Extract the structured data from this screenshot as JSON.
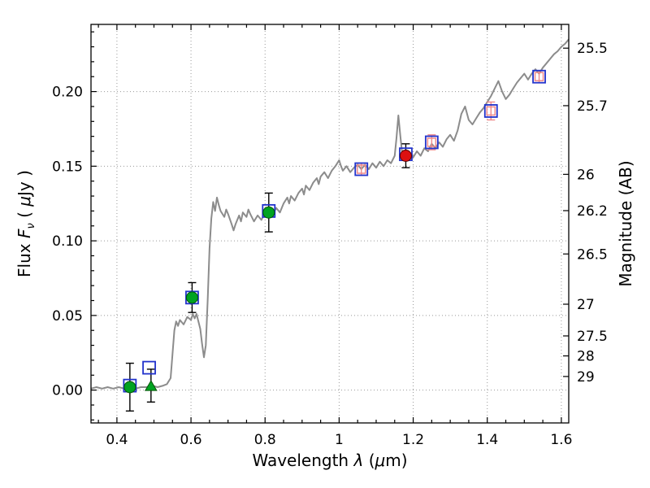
{
  "labels": {
    "flux_word": "Flux",
    "flux_symbol": "F",
    "flux_sub": "ν",
    "flux_open": "( ",
    "mu": "μ",
    "flux_close": "Jy )",
    "x_word": "Wavelength",
    "x_symbol": "λ",
    "x_open": "(",
    "x_close": "m)",
    "right_label": "Magnitude (AB)"
  },
  "chart_data": {
    "type": "line",
    "title": "",
    "xlabel": "Wavelength λ (μm)",
    "ylabel": "Flux Fν ( μJy )",
    "ylabel_right": "Magnitude (AB)",
    "xlim": [
      0.33,
      1.62
    ],
    "ylim": [
      -0.022,
      0.245
    ],
    "xticks": {
      "values": [
        0.4,
        0.6,
        0.8,
        1.0,
        1.2,
        1.4,
        1.6
      ],
      "labels": [
        "0.4",
        "0.6",
        "0.8",
        "1",
        "1.2",
        "1.4",
        "1.6"
      ]
    },
    "yticks": {
      "values": [
        0.0,
        0.05,
        0.1,
        0.15,
        0.2
      ],
      "labels": [
        "0.00",
        "0.05",
        "0.10",
        "0.15",
        "0.20"
      ]
    },
    "x_minor_step": 0.05,
    "y_minor_step": 0.01,
    "right_axis": {
      "label": "Magnitude (AB)",
      "ticks": [
        25.5,
        25.7,
        26.0,
        26.2,
        26.5,
        27.0,
        27.5,
        28.0,
        29.0
      ],
      "tick_labels": [
        "25.5",
        "25.7",
        "26",
        "26.2",
        "26.5",
        "27",
        "27.5",
        "28",
        "29"
      ],
      "zeropoint_ab": 23.9
    },
    "grid": {
      "on": true,
      "style": "dotted",
      "color": "#999999"
    },
    "frame_color": "#000000",
    "spectrum": {
      "name": "model-spectrum",
      "color": "#8c8c8c",
      "width": 2,
      "points": [
        [
          0.33,
          0.001
        ],
        [
          0.345,
          0.002
        ],
        [
          0.36,
          0.001
        ],
        [
          0.375,
          0.002
        ],
        [
          0.39,
          0.001
        ],
        [
          0.405,
          0.002
        ],
        [
          0.42,
          0.001
        ],
        [
          0.435,
          0.002
        ],
        [
          0.45,
          0.001
        ],
        [
          0.465,
          0.002
        ],
        [
          0.48,
          0.002
        ],
        [
          0.495,
          0.003
        ],
        [
          0.51,
          0.002
        ],
        [
          0.525,
          0.003
        ],
        [
          0.535,
          0.004
        ],
        [
          0.545,
          0.008
        ],
        [
          0.55,
          0.024
        ],
        [
          0.555,
          0.04
        ],
        [
          0.56,
          0.046
        ],
        [
          0.565,
          0.043
        ],
        [
          0.57,
          0.047
        ],
        [
          0.58,
          0.044
        ],
        [
          0.59,
          0.049
        ],
        [
          0.6,
          0.047
        ],
        [
          0.605,
          0.051
        ],
        [
          0.61,
          0.048
        ],
        [
          0.615,
          0.051
        ],
        [
          0.62,
          0.046
        ],
        [
          0.625,
          0.041
        ],
        [
          0.63,
          0.031
        ],
        [
          0.635,
          0.022
        ],
        [
          0.64,
          0.03
        ],
        [
          0.645,
          0.06
        ],
        [
          0.65,
          0.095
        ],
        [
          0.655,
          0.115
        ],
        [
          0.66,
          0.126
        ],
        [
          0.665,
          0.12
        ],
        [
          0.67,
          0.129
        ],
        [
          0.675,
          0.124
        ],
        [
          0.68,
          0.12
        ],
        [
          0.69,
          0.116
        ],
        [
          0.695,
          0.121
        ],
        [
          0.7,
          0.118
        ],
        [
          0.71,
          0.111
        ],
        [
          0.715,
          0.107
        ],
        [
          0.72,
          0.111
        ],
        [
          0.73,
          0.117
        ],
        [
          0.735,
          0.113
        ],
        [
          0.74,
          0.119
        ],
        [
          0.75,
          0.116
        ],
        [
          0.755,
          0.121
        ],
        [
          0.76,
          0.118
        ],
        [
          0.77,
          0.113
        ],
        [
          0.78,
          0.117
        ],
        [
          0.79,
          0.114
        ],
        [
          0.8,
          0.119
        ],
        [
          0.805,
          0.116
        ],
        [
          0.81,
          0.12
        ],
        [
          0.82,
          0.117
        ],
        [
          0.83,
          0.122
        ],
        [
          0.84,
          0.119
        ],
        [
          0.85,
          0.125
        ],
        [
          0.86,
          0.129
        ],
        [
          0.865,
          0.125
        ],
        [
          0.87,
          0.13
        ],
        [
          0.88,
          0.127
        ],
        [
          0.89,
          0.132
        ],
        [
          0.9,
          0.135
        ],
        [
          0.905,
          0.131
        ],
        [
          0.91,
          0.137
        ],
        [
          0.92,
          0.134
        ],
        [
          0.93,
          0.139
        ],
        [
          0.94,
          0.142
        ],
        [
          0.945,
          0.138
        ],
        [
          0.95,
          0.143
        ],
        [
          0.96,
          0.146
        ],
        [
          0.97,
          0.142
        ],
        [
          0.98,
          0.147
        ],
        [
          0.99,
          0.15
        ],
        [
          1.0,
          0.154
        ],
        [
          1.005,
          0.15
        ],
        [
          1.01,
          0.147
        ],
        [
          1.02,
          0.15
        ],
        [
          1.03,
          0.146
        ],
        [
          1.04,
          0.149
        ],
        [
          1.05,
          0.151
        ],
        [
          1.06,
          0.148
        ],
        [
          1.07,
          0.151
        ],
        [
          1.08,
          0.148
        ],
        [
          1.09,
          0.152
        ],
        [
          1.1,
          0.149
        ],
        [
          1.11,
          0.153
        ],
        [
          1.12,
          0.15
        ],
        [
          1.13,
          0.154
        ],
        [
          1.14,
          0.152
        ],
        [
          1.15,
          0.157
        ],
        [
          1.155,
          0.169
        ],
        [
          1.16,
          0.184
        ],
        [
          1.165,
          0.171
        ],
        [
          1.17,
          0.159
        ],
        [
          1.18,
          0.156
        ],
        [
          1.19,
          0.159
        ],
        [
          1.2,
          0.156
        ],
        [
          1.21,
          0.16
        ],
        [
          1.22,
          0.157
        ],
        [
          1.23,
          0.162
        ],
        [
          1.24,
          0.16
        ],
        [
          1.25,
          0.165
        ],
        [
          1.26,
          0.162
        ],
        [
          1.27,
          0.166
        ],
        [
          1.28,
          0.163
        ],
        [
          1.29,
          0.168
        ],
        [
          1.3,
          0.171
        ],
        [
          1.31,
          0.167
        ],
        [
          1.32,
          0.174
        ],
        [
          1.33,
          0.185
        ],
        [
          1.34,
          0.19
        ],
        [
          1.35,
          0.181
        ],
        [
          1.36,
          0.178
        ],
        [
          1.37,
          0.182
        ],
        [
          1.38,
          0.186
        ],
        [
          1.39,
          0.189
        ],
        [
          1.4,
          0.193
        ],
        [
          1.41,
          0.197
        ],
        [
          1.42,
          0.202
        ],
        [
          1.43,
          0.207
        ],
        [
          1.44,
          0.2
        ],
        [
          1.45,
          0.195
        ],
        [
          1.46,
          0.198
        ],
        [
          1.47,
          0.202
        ],
        [
          1.48,
          0.206
        ],
        [
          1.49,
          0.209
        ],
        [
          1.5,
          0.212
        ],
        [
          1.51,
          0.208
        ],
        [
          1.52,
          0.212
        ],
        [
          1.53,
          0.215
        ],
        [
          1.54,
          0.212
        ],
        [
          1.55,
          0.216
        ],
        [
          1.56,
          0.219
        ],
        [
          1.57,
          0.222
        ],
        [
          1.58,
          0.225
        ],
        [
          1.59,
          0.227
        ],
        [
          1.6,
          0.23
        ],
        [
          1.61,
          0.232
        ],
        [
          1.62,
          0.235
        ]
      ]
    },
    "photometry": {
      "green_circles": {
        "color": "#00a321",
        "points": [
          {
            "x": 0.435,
            "y": 0.002,
            "yerr": 0.016
          },
          {
            "x": 0.603,
            "y": 0.062,
            "yerr": 0.01
          },
          {
            "x": 0.81,
            "y": 0.119,
            "yerr": 0.013
          }
        ]
      },
      "green_triangle": {
        "color": "#00a321",
        "x": 0.492,
        "y": 0.003,
        "yerr": 0.011
      },
      "red_circle": {
        "color": "#dd1111",
        "x": 1.18,
        "y": 0.157,
        "yerr": 0.008
      },
      "blue_open_squares": {
        "color": "#2233cc",
        "points": [
          [
            0.435,
            0.003
          ],
          [
            0.487,
            0.015
          ],
          [
            0.603,
            0.062
          ],
          [
            0.81,
            0.12
          ],
          [
            1.06,
            0.148
          ],
          [
            1.18,
            0.158
          ],
          [
            1.25,
            0.166
          ],
          [
            1.41,
            0.187
          ],
          [
            1.54,
            0.21
          ]
        ]
      },
      "red_open_squares": {
        "color": "#ef8a8a",
        "points": [
          {
            "x": 1.06,
            "y": 0.148,
            "yerr": 0.004
          },
          {
            "x": 1.25,
            "y": 0.166,
            "yerr": 0.005
          },
          {
            "x": 1.41,
            "y": 0.187,
            "yerr": 0.006
          },
          {
            "x": 1.54,
            "y": 0.21,
            "yerr": 0.004
          }
        ]
      }
    }
  }
}
